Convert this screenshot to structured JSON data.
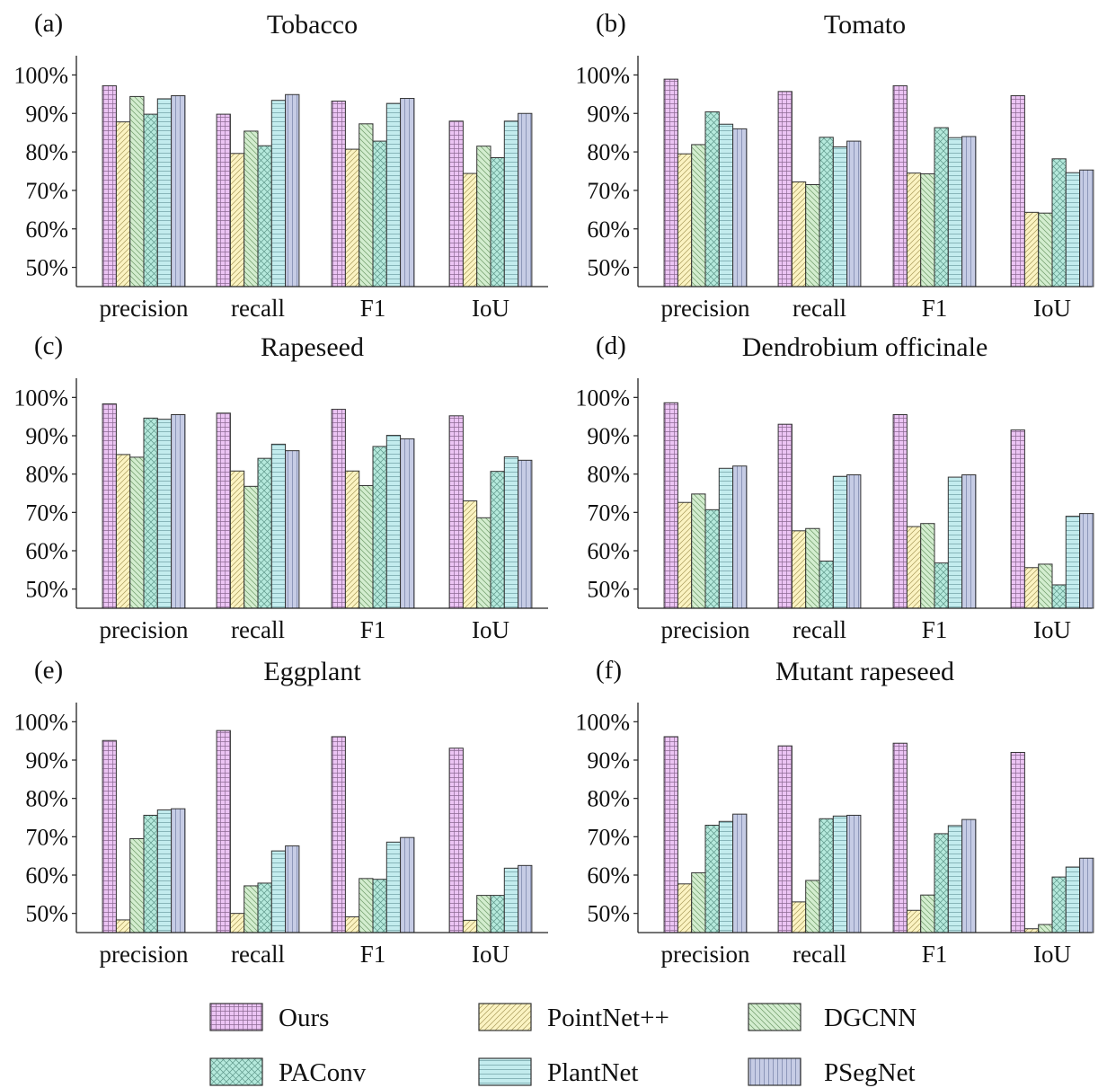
{
  "figure": {
    "legend": [
      {
        "label": "Ours",
        "color": "#ECC4F4",
        "pattern": "grid"
      },
      {
        "label": "PointNet++",
        "color": "#FBF3C2",
        "pattern": "diag-right"
      },
      {
        "label": "DGCNN",
        "color": "#D3EDCF",
        "pattern": "diag-left"
      },
      {
        "label": "PAConv",
        "color": "#B5E9DC",
        "pattern": "cross"
      },
      {
        "label": "PlantNet",
        "color": "#C3ECEE",
        "pattern": "horizontal"
      },
      {
        "label": "PSegNet",
        "color": "#C6CCE5",
        "pattern": "vertical"
      }
    ]
  },
  "chart_data": [
    {
      "type": "bar",
      "panel": "(a)",
      "title": "Tobacco",
      "categories": [
        "precision",
        "recall",
        "F1",
        "IoU"
      ],
      "yticks": [
        "50%",
        "60%",
        "70%",
        "80%",
        "90%",
        "100%"
      ],
      "ylim": [
        45,
        105
      ],
      "series": [
        {
          "name": "Ours",
          "values": [
            97.2,
            89.8,
            93.2,
            88.0
          ]
        },
        {
          "name": "PointNet++",
          "values": [
            87.8,
            79.6,
            80.7,
            74.4
          ]
        },
        {
          "name": "DGCNN",
          "values": [
            94.4,
            85.4,
            87.3,
            81.5
          ]
        },
        {
          "name": "PAConv",
          "values": [
            89.8,
            81.6,
            82.8,
            78.5
          ]
        },
        {
          "name": "PlantNet",
          "values": [
            93.8,
            93.4,
            92.6,
            88.0
          ]
        },
        {
          "name": "PSegNet",
          "values": [
            94.6,
            94.9,
            93.9,
            90.0
          ]
        }
      ]
    },
    {
      "type": "bar",
      "panel": "(b)",
      "title": "Tomato",
      "categories": [
        "precision",
        "recall",
        "F1",
        "IoU"
      ],
      "yticks": [
        "50%",
        "60%",
        "70%",
        "80%",
        "90%",
        "100%"
      ],
      "ylim": [
        45,
        105
      ],
      "series": [
        {
          "name": "Ours",
          "values": [
            98.9,
            95.7,
            97.2,
            94.6
          ]
        },
        {
          "name": "PointNet++",
          "values": [
            79.5,
            72.2,
            74.5,
            64.3
          ]
        },
        {
          "name": "DGCNN",
          "values": [
            81.9,
            71.5,
            74.3,
            64.1
          ]
        },
        {
          "name": "PAConv",
          "values": [
            90.4,
            83.8,
            86.3,
            78.2
          ]
        },
        {
          "name": "PlantNet",
          "values": [
            87.2,
            81.3,
            83.7,
            74.6
          ]
        },
        {
          "name": "PSegNet",
          "values": [
            86.0,
            82.8,
            84.0,
            75.3
          ]
        }
      ]
    },
    {
      "type": "bar",
      "panel": "(c)",
      "title": "Rapeseed",
      "categories": [
        "precision",
        "recall",
        "F1",
        "IoU"
      ],
      "yticks": [
        "50%",
        "60%",
        "70%",
        "80%",
        "90%",
        "100%"
      ],
      "ylim": [
        45,
        105
      ],
      "series": [
        {
          "name": "Ours",
          "values": [
            98.3,
            95.9,
            96.9,
            95.2
          ]
        },
        {
          "name": "PointNet++",
          "values": [
            85.1,
            80.8,
            80.8,
            73.0
          ]
        },
        {
          "name": "DGCNN",
          "values": [
            84.4,
            76.8,
            77.0,
            68.6
          ]
        },
        {
          "name": "PAConv",
          "values": [
            94.6,
            84.1,
            87.2,
            80.7
          ]
        },
        {
          "name": "PlantNet",
          "values": [
            94.3,
            87.8,
            90.1,
            84.5
          ]
        },
        {
          "name": "PSegNet",
          "values": [
            95.5,
            86.1,
            89.2,
            83.6
          ]
        }
      ]
    },
    {
      "type": "bar",
      "panel": "(d)",
      "title": "Dendrobium officinale",
      "categories": [
        "precision",
        "recall",
        "F1",
        "IoU"
      ],
      "yticks": [
        "50%",
        "60%",
        "70%",
        "80%",
        "90%",
        "100%"
      ],
      "ylim": [
        45,
        105
      ],
      "series": [
        {
          "name": "Ours",
          "values": [
            98.6,
            93.0,
            95.5,
            91.5
          ]
        },
        {
          "name": "PointNet++",
          "values": [
            72.6,
            65.2,
            66.3,
            55.6
          ]
        },
        {
          "name": "DGCNN",
          "values": [
            74.8,
            65.8,
            67.1,
            56.5
          ]
        },
        {
          "name": "PAConv",
          "values": [
            70.7,
            57.3,
            56.8,
            51.1
          ]
        },
        {
          "name": "PlantNet",
          "values": [
            81.5,
            79.4,
            79.2,
            69.0
          ]
        },
        {
          "name": "PSegNet",
          "values": [
            82.1,
            79.8,
            79.8,
            69.7
          ]
        }
      ]
    },
    {
      "type": "bar",
      "panel": "(e)",
      "title": "Eggplant",
      "categories": [
        "precision",
        "recall",
        "F1",
        "IoU"
      ],
      "yticks": [
        "50%",
        "60%",
        "70%",
        "80%",
        "90%",
        "100%"
      ],
      "ylim": [
        45,
        105
      ],
      "series": [
        {
          "name": "Ours",
          "values": [
            95.1,
            97.7,
            96.1,
            93.1
          ]
        },
        {
          "name": "PointNet++",
          "values": [
            48.3,
            50.0,
            49.1,
            48.2
          ]
        },
        {
          "name": "DGCNN",
          "values": [
            69.5,
            57.2,
            59.1,
            54.7
          ]
        },
        {
          "name": "PAConv",
          "values": [
            75.6,
            57.9,
            58.9,
            54.7
          ]
        },
        {
          "name": "PlantNet",
          "values": [
            77.0,
            66.3,
            68.6,
            61.8
          ]
        },
        {
          "name": "PSegNet",
          "values": [
            77.3,
            67.6,
            69.8,
            62.5
          ]
        }
      ]
    },
    {
      "type": "bar",
      "panel": "(f)",
      "title": "Mutant rapeseed",
      "categories": [
        "precision",
        "recall",
        "F1",
        "IoU"
      ],
      "yticks": [
        "50%",
        "60%",
        "70%",
        "80%",
        "90%",
        "100%"
      ],
      "ylim": [
        45,
        105
      ],
      "series": [
        {
          "name": "Ours",
          "values": [
            96.1,
            93.7,
            94.4,
            92.0
          ]
        },
        {
          "name": "PointNet++",
          "values": [
            57.7,
            53.0,
            50.8,
            46.0
          ]
        },
        {
          "name": "DGCNN",
          "values": [
            60.6,
            58.6,
            54.8,
            47.1
          ]
        },
        {
          "name": "PAConv",
          "values": [
            73.0,
            74.7,
            70.8,
            59.5
          ]
        },
        {
          "name": "PlantNet",
          "values": [
            74.0,
            75.4,
            72.9,
            62.1
          ]
        },
        {
          "name": "PSegNet",
          "values": [
            75.9,
            75.6,
            74.5,
            64.4
          ]
        }
      ]
    }
  ]
}
